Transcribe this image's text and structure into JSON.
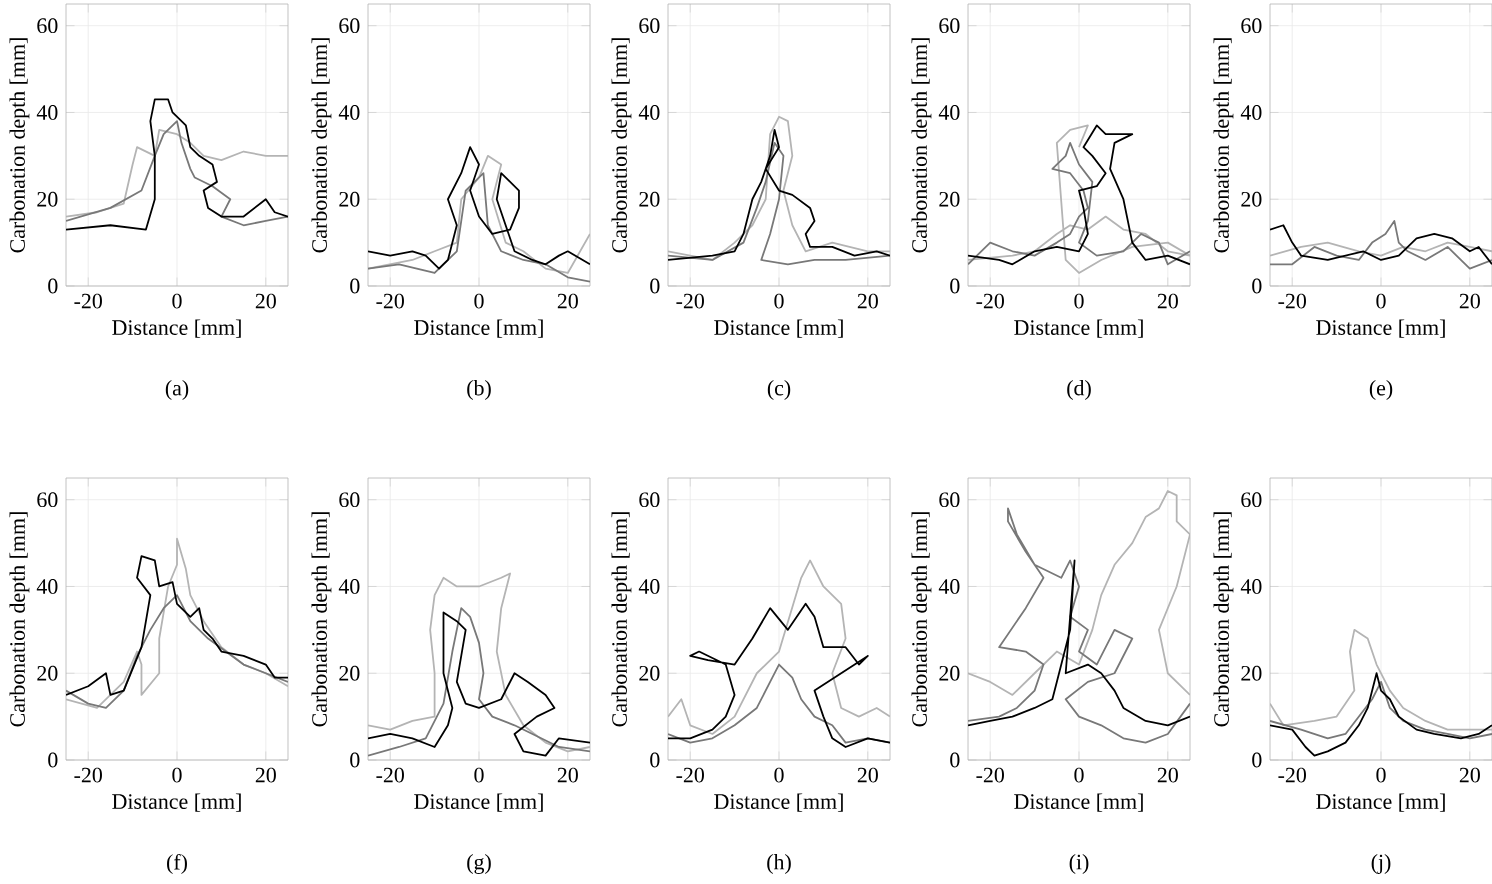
{
  "chart_data": [
    {
      "type": "line",
      "xlabel": "Distance [mm]",
      "ylabel": "Carbonation depth [mm]",
      "annotations": [
        "(a)"
      ],
      "xlim": [
        -25,
        25
      ],
      "ylim": [
        0,
        65
      ],
      "xticks": [
        -20,
        0,
        20
      ],
      "yticks": [
        0,
        20,
        40,
        60
      ],
      "grid": true,
      "series": [
        {
          "color": "#b4b4b4",
          "x": [
            -25,
            -18,
            -12,
            -10,
            -9,
            -5,
            -4,
            0,
            3,
            6,
            10,
            15,
            20,
            25
          ],
          "values": [
            16,
            17,
            19,
            28,
            32,
            30,
            36,
            35,
            33,
            30,
            29,
            31,
            30,
            30
          ]
        },
        {
          "color": "#787878",
          "x": [
            -25,
            -15,
            -8,
            -5,
            -3,
            0,
            1,
            3,
            4,
            8,
            12,
            10,
            15,
            20,
            25
          ],
          "values": [
            15,
            18,
            22,
            30,
            35,
            38,
            33,
            27,
            25,
            23,
            20,
            16,
            14,
            15,
            16
          ]
        },
        {
          "color": "#000000",
          "x": [
            -25,
            -15,
            -7,
            -5,
            -5,
            -6,
            -5,
            -2,
            -1,
            2,
            3,
            5,
            8,
            9,
            6,
            7,
            10,
            15,
            20,
            22,
            25
          ],
          "values": [
            13,
            14,
            13,
            20,
            30,
            38,
            43,
            43,
            40,
            37,
            32,
            30,
            28,
            24,
            22,
            18,
            16,
            16,
            20,
            17,
            16
          ]
        }
      ]
    },
    {
      "type": "line",
      "xlabel": "Distance [mm]",
      "ylabel": "Carbonation depth [mm]",
      "annotations": [
        "(b)"
      ],
      "xlim": [
        -25,
        25
      ],
      "ylim": [
        0,
        65
      ],
      "xticks": [
        -20,
        0,
        20
      ],
      "yticks": [
        0,
        20,
        40,
        60
      ],
      "grid": true,
      "series": [
        {
          "color": "#b4b4b4",
          "x": [
            -25,
            -15,
            -10,
            -5,
            -4,
            0,
            2,
            5,
            3,
            6,
            10,
            15,
            20,
            25
          ],
          "values": [
            4,
            6,
            8,
            10,
            20,
            25,
            30,
            28,
            20,
            10,
            8,
            4,
            3,
            12
          ]
        },
        {
          "color": "#787878",
          "x": [
            -25,
            -18,
            -10,
            -5,
            -3,
            1,
            2,
            5,
            10,
            15,
            20,
            25
          ],
          "values": [
            4,
            5,
            3,
            8,
            22,
            26,
            14,
            8,
            6,
            5,
            2,
            1
          ]
        },
        {
          "color": "#000000",
          "x": [
            -25,
            -20,
            -15,
            -12,
            -9,
            -7,
            -5,
            -7,
            -4,
            -2,
            0,
            -2,
            0,
            3,
            7,
            9,
            9,
            5,
            4,
            8,
            12,
            15,
            18,
            20,
            25
          ],
          "values": [
            8,
            7,
            8,
            7,
            4,
            6,
            14,
            20,
            26,
            32,
            28,
            22,
            16,
            12,
            13,
            18,
            22,
            26,
            20,
            8,
            6,
            5,
            7,
            8,
            5
          ]
        }
      ]
    },
    {
      "type": "line",
      "xlabel": "Distance [mm]",
      "ylabel": "Carbonation depth [mm]",
      "annotations": [
        "(c)"
      ],
      "xlim": [
        -25,
        25
      ],
      "ylim": [
        0,
        65
      ],
      "xticks": [
        -20,
        0,
        20
      ],
      "yticks": [
        0,
        20,
        40,
        60
      ],
      "grid": true,
      "series": [
        {
          "color": "#b4b4b4",
          "x": [
            -25,
            -15,
            -10,
            -6,
            -3,
            -2,
            0,
            2,
            3,
            1,
            3,
            6,
            12,
            20,
            25
          ],
          "values": [
            8,
            6,
            10,
            14,
            20,
            35,
            39,
            38,
            30,
            22,
            14,
            8,
            10,
            8,
            8
          ]
        },
        {
          "color": "#787878",
          "x": [
            -25,
            -15,
            -8,
            -5,
            -3,
            -1,
            1,
            0,
            -2,
            -4,
            2,
            8,
            15,
            25
          ],
          "values": [
            7,
            6,
            10,
            18,
            24,
            33,
            30,
            20,
            12,
            6,
            5,
            6,
            6,
            7
          ]
        },
        {
          "color": "#000000",
          "x": [
            -25,
            -15,
            -10,
            -8,
            -6,
            -4,
            -2,
            -1,
            0,
            -3,
            0,
            3,
            7,
            8,
            6,
            7,
            12,
            17,
            22,
            25
          ],
          "values": [
            6,
            7,
            8,
            12,
            20,
            24,
            30,
            36,
            32,
            27,
            22,
            21,
            18,
            15,
            12,
            9,
            9,
            7,
            8,
            7
          ]
        }
      ]
    },
    {
      "type": "line",
      "xlabel": "Distance [mm]",
      "ylabel": "Carbonation depth [mm]",
      "annotations": [
        "(d)"
      ],
      "xlim": [
        -25,
        25
      ],
      "ylim": [
        0,
        65
      ],
      "xticks": [
        -20,
        0,
        20
      ],
      "yticks": [
        0,
        20,
        40,
        60
      ],
      "grid": true,
      "series": [
        {
          "color": "#b4b4b4",
          "x": [
            -25,
            -15,
            -10,
            -5,
            -2,
            2,
            6,
            10,
            15,
            20,
            25,
            20,
            12,
            5,
            0,
            -3,
            -5,
            -2,
            2,
            0
          ],
          "values": [
            6,
            7,
            8,
            12,
            14,
            13,
            16,
            13,
            12,
            8,
            7,
            10,
            9,
            6,
            3,
            6,
            33,
            36,
            37,
            32
          ]
        },
        {
          "color": "#787878",
          "x": [
            -25,
            -20,
            -15,
            -10,
            -5,
            -2,
            0,
            2,
            1,
            -2,
            -6,
            -3,
            -2,
            0,
            3,
            2,
            0,
            4,
            10,
            14,
            18,
            20,
            25
          ],
          "values": [
            5,
            10,
            8,
            7,
            10,
            12,
            16,
            18,
            22,
            26,
            27,
            30,
            33,
            28,
            24,
            15,
            10,
            7,
            8,
            12,
            10,
            5,
            8
          ]
        },
        {
          "color": "#000000",
          "x": [
            -25,
            -18,
            -15,
            -10,
            -5,
            0,
            2,
            1,
            0,
            4,
            6,
            3,
            1,
            4,
            6,
            12,
            8,
            7,
            10,
            12,
            15,
            20,
            25
          ],
          "values": [
            7,
            6,
            5,
            8,
            9,
            8,
            12,
            18,
            22,
            23,
            26,
            30,
            32,
            37,
            35,
            35,
            33,
            27,
            20,
            10,
            6,
            7,
            5
          ]
        }
      ]
    },
    {
      "type": "line",
      "xlabel": "Distance [mm]",
      "ylabel": "Carbonation depth [mm]",
      "annotations": [
        "(e)"
      ],
      "xlim": [
        -25,
        25
      ],
      "ylim": [
        0,
        65
      ],
      "xticks": [
        -20,
        0,
        20
      ],
      "yticks": [
        0,
        20,
        40,
        60
      ],
      "grid": true,
      "series": [
        {
          "color": "#b4b4b4",
          "x": [
            -25,
            -18,
            -12,
            -5,
            0,
            5,
            10,
            15,
            20,
            25
          ],
          "values": [
            7,
            9,
            10,
            8,
            7,
            9,
            8,
            10,
            9,
            8
          ]
        },
        {
          "color": "#787878",
          "x": [
            -25,
            -20,
            -15,
            -10,
            -5,
            -2,
            1,
            3,
            4,
            6,
            10,
            15,
            20,
            25
          ],
          "values": [
            5,
            5,
            9,
            7,
            6,
            10,
            12,
            15,
            10,
            8,
            6,
            9,
            4,
            6
          ]
        },
        {
          "color": "#000000",
          "x": [
            -25,
            -22,
            -20,
            -18,
            -12,
            -8,
            -4,
            0,
            4,
            8,
            12,
            16,
            20,
            22,
            25
          ],
          "values": [
            13,
            14,
            10,
            7,
            6,
            7,
            8,
            6,
            7,
            11,
            12,
            11,
            8,
            9,
            5
          ]
        }
      ]
    },
    {
      "type": "line",
      "xlabel": "Distance [mm]",
      "ylabel": "Carbonation depth [mm]",
      "annotations": [
        "(f)"
      ],
      "xlim": [
        -25,
        25
      ],
      "ylim": [
        0,
        65
      ],
      "xticks": [
        -20,
        0,
        20
      ],
      "yticks": [
        0,
        20,
        40,
        60
      ],
      "grid": true,
      "series": [
        {
          "color": "#b4b4b4",
          "x": [
            -25,
            -18,
            -12,
            -9,
            -8,
            -8,
            -4,
            -4,
            -2,
            0,
            0,
            2,
            3,
            6,
            10,
            15,
            20,
            25
          ],
          "values": [
            14,
            12,
            18,
            25,
            22,
            15,
            20,
            28,
            40,
            45,
            51,
            44,
            38,
            32,
            26,
            22,
            20,
            17
          ]
        },
        {
          "color": "#787878",
          "x": [
            -25,
            -20,
            -16,
            -12,
            -9,
            -6,
            -3,
            0,
            3,
            7,
            11,
            15,
            20,
            25
          ],
          "values": [
            16,
            13,
            12,
            16,
            24,
            30,
            35,
            38,
            32,
            28,
            25,
            22,
            20,
            18
          ]
        },
        {
          "color": "#000000",
          "x": [
            -25,
            -20,
            -16,
            -15,
            -12,
            -10,
            -8,
            -7,
            -6,
            -9,
            -8,
            -5,
            -4,
            -1,
            0,
            3,
            5,
            6,
            8,
            10,
            15,
            20,
            22,
            25
          ],
          "values": [
            15,
            17,
            20,
            15,
            16,
            21,
            26,
            32,
            38,
            42,
            47,
            46,
            40,
            41,
            36,
            33,
            35,
            30,
            28,
            25,
            24,
            22,
            19,
            19
          ]
        }
      ]
    },
    {
      "type": "line",
      "xlabel": "Distance [mm]",
      "ylabel": "Carbonation depth [mm]",
      "annotations": [
        "(g)"
      ],
      "xlim": [
        -25,
        25
      ],
      "ylim": [
        0,
        65
      ],
      "xticks": [
        -20,
        0,
        20
      ],
      "yticks": [
        0,
        20,
        40,
        60
      ],
      "grid": true,
      "series": [
        {
          "color": "#b4b4b4",
          "x": [
            -25,
            -20,
            -15,
            -10,
            -10,
            -11,
            -10,
            -8,
            -5,
            0,
            5,
            7,
            5,
            4,
            6,
            10,
            15,
            20,
            25
          ],
          "values": [
            8,
            7,
            9,
            10,
            20,
            30,
            38,
            42,
            40,
            40,
            42,
            43,
            35,
            25,
            15,
            8,
            4,
            2,
            3
          ]
        },
        {
          "color": "#787878",
          "x": [
            -25,
            -18,
            -12,
            -8,
            -6,
            -4,
            -2,
            0,
            1,
            0,
            3,
            8,
            14,
            18,
            25
          ],
          "values": [
            1,
            3,
            5,
            13,
            25,
            35,
            33,
            27,
            20,
            14,
            10,
            8,
            5,
            3,
            2
          ]
        },
        {
          "color": "#000000",
          "x": [
            -25,
            -20,
            -15,
            -10,
            -7,
            -6,
            -8,
            -8,
            -5,
            -3,
            -4,
            -5,
            -3,
            0,
            5,
            8,
            11,
            15,
            17,
            13,
            8,
            10,
            15,
            18,
            25
          ],
          "values": [
            5,
            6,
            5,
            3,
            8,
            12,
            20,
            34,
            32,
            30,
            24,
            18,
            13,
            12,
            14,
            20,
            18,
            15,
            12,
            10,
            6,
            2,
            1,
            5,
            4
          ]
        }
      ]
    },
    {
      "type": "line",
      "xlabel": "Distance [mm]",
      "ylabel": "Carbonation depth [mm]",
      "annotations": [
        "(h)"
      ],
      "xlim": [
        -25,
        25
      ],
      "ylim": [
        0,
        65
      ],
      "xticks": [
        -20,
        0,
        20
      ],
      "yticks": [
        0,
        20,
        40,
        60
      ],
      "grid": true,
      "series": [
        {
          "color": "#b4b4b4",
          "x": [
            -25,
            -22,
            -20,
            -15,
            -10,
            -5,
            0,
            5,
            7,
            10,
            14,
            15,
            12,
            14,
            18,
            22,
            25
          ],
          "values": [
            10,
            14,
            8,
            6,
            10,
            20,
            25,
            42,
            46,
            40,
            36,
            28,
            20,
            12,
            10,
            12,
            10
          ]
        },
        {
          "color": "#787878",
          "x": [
            -25,
            -20,
            -15,
            -10,
            -5,
            -2,
            0,
            3,
            5,
            8,
            12,
            15,
            20,
            25
          ],
          "values": [
            6,
            4,
            5,
            8,
            12,
            18,
            22,
            19,
            14,
            10,
            8,
            4,
            5,
            4
          ]
        },
        {
          "color": "#000000",
          "x": [
            -25,
            -20,
            -15,
            -12,
            -10,
            -12,
            -18,
            -20,
            -16,
            -10,
            -6,
            -2,
            2,
            6,
            8,
            10,
            15,
            18,
            20,
            14,
            8,
            10,
            12,
            15,
            20,
            25
          ],
          "values": [
            5,
            5,
            7,
            10,
            15,
            22,
            25,
            24,
            23,
            22,
            28,
            35,
            30,
            36,
            33,
            26,
            26,
            22,
            24,
            20,
            16,
            10,
            5,
            3,
            5,
            4
          ]
        }
      ]
    },
    {
      "type": "line",
      "xlabel": "Distance [mm]",
      "ylabel": "Carbonation depth [mm]",
      "annotations": [
        "(i)"
      ],
      "xlim": [
        -25,
        25
      ],
      "ylim": [
        0,
        65
      ],
      "xticks": [
        -20,
        0,
        20
      ],
      "yticks": [
        0,
        20,
        40,
        60
      ],
      "grid": true,
      "series": [
        {
          "color": "#b4b4b4",
          "x": [
            -25,
            -20,
            -15,
            -10,
            -5,
            0,
            3,
            5,
            8,
            12,
            15,
            18,
            20,
            22,
            22,
            25,
            22,
            18,
            20,
            25
          ],
          "values": [
            20,
            18,
            15,
            20,
            25,
            22,
            30,
            38,
            45,
            50,
            56,
            58,
            62,
            61,
            55,
            52,
            40,
            30,
            20,
            15
          ]
        },
        {
          "color": "#787878",
          "x": [
            -25,
            -18,
            -14,
            -10,
            -8,
            -12,
            -18,
            -12,
            -8,
            -12,
            -16,
            -16,
            -14,
            -10,
            -4,
            -2,
            0,
            -2,
            2,
            0,
            4,
            8,
            12,
            8,
            2,
            -3,
            0,
            5,
            10,
            15,
            20,
            25
          ],
          "values": [
            9,
            10,
            12,
            16,
            22,
            25,
            26,
            35,
            42,
            48,
            55,
            58,
            52,
            45,
            42,
            46,
            40,
            33,
            30,
            25,
            22,
            30,
            28,
            20,
            18,
            14,
            10,
            8,
            5,
            4,
            6,
            13
          ]
        },
        {
          "color": "#000000",
          "x": [
            -25,
            -20,
            -15,
            -10,
            -6,
            -5,
            -2,
            -1,
            -3,
            2,
            5,
            8,
            10,
            15,
            20,
            25
          ],
          "values": [
            8,
            9,
            10,
            12,
            14,
            18,
            30,
            46,
            20,
            22,
            20,
            16,
            12,
            9,
            8,
            10
          ]
        }
      ]
    },
    {
      "type": "line",
      "xlabel": "Distance [mm]",
      "ylabel": "Carbonation depth [mm]",
      "annotations": [
        "(j)"
      ],
      "xlim": [
        -25,
        25
      ],
      "ylim": [
        0,
        65
      ],
      "xticks": [
        -20,
        0,
        20
      ],
      "yticks": [
        0,
        20,
        40,
        60
      ],
      "grid": true,
      "series": [
        {
          "color": "#b4b4b4",
          "x": [
            -25,
            -22,
            -15,
            -10,
            -6,
            -7,
            -6,
            -3,
            -1,
            2,
            5,
            10,
            15,
            20,
            25
          ],
          "values": [
            13,
            8,
            9,
            10,
            16,
            25,
            30,
            28,
            22,
            16,
            12,
            9,
            7,
            7,
            7
          ]
        },
        {
          "color": "#787878",
          "x": [
            -25,
            -18,
            -12,
            -8,
            -5,
            -2,
            0,
            2,
            5,
            10,
            15,
            20,
            25
          ],
          "values": [
            9,
            7,
            5,
            6,
            10,
            14,
            18,
            12,
            9,
            7,
            6,
            5,
            6
          ]
        },
        {
          "color": "#000000",
          "x": [
            -25,
            -20,
            -17,
            -15,
            -12,
            -8,
            -5,
            -3,
            -1,
            0,
            2,
            4,
            8,
            12,
            18,
            22,
            25
          ],
          "values": [
            8,
            7,
            3,
            1,
            2,
            4,
            8,
            12,
            20,
            16,
            14,
            10,
            7,
            6,
            5,
            6,
            8
          ]
        }
      ]
    }
  ]
}
